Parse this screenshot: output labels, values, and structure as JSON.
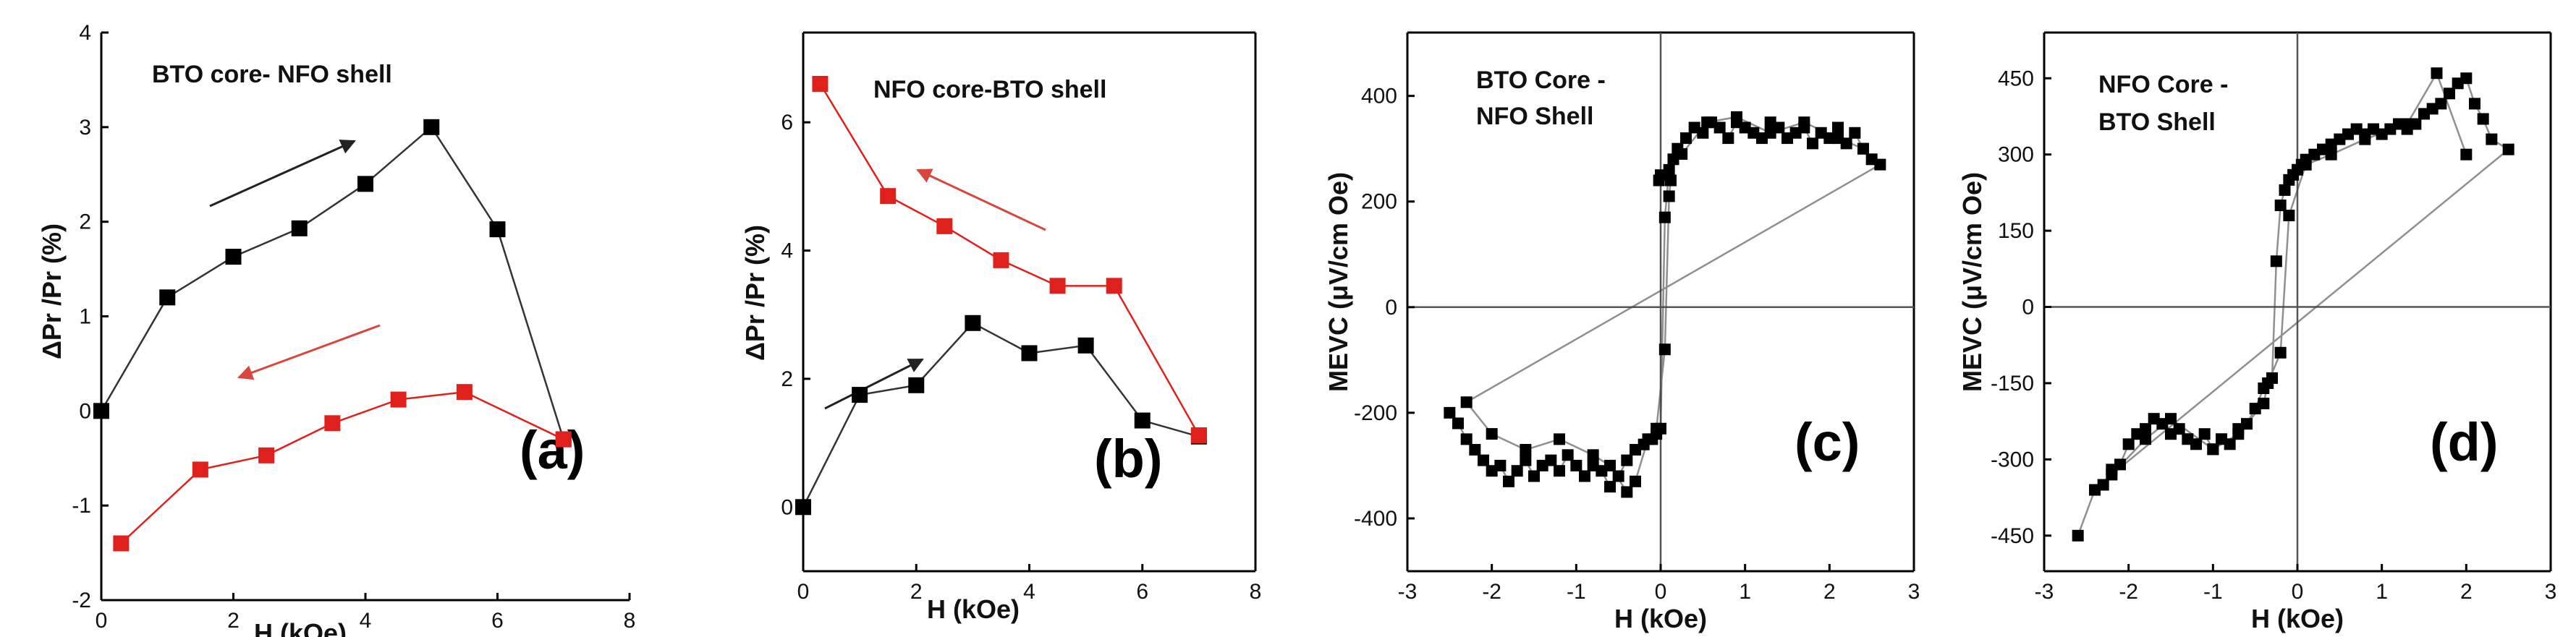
{
  "chart_data": [
    {
      "type": "line",
      "panel_label": "(a)",
      "title": "BTO core- NFO shell",
      "xlabel": "H (kOe)",
      "ylabel": "ΔPr /Pr (%)",
      "xlim": [
        0,
        8
      ],
      "ylim": [
        -2,
        4
      ],
      "xticks": [
        0,
        2,
        4,
        6,
        8
      ],
      "yticks": [
        -2,
        -1,
        0,
        1,
        2,
        3,
        4
      ],
      "series": [
        {
          "name": "increasing field",
          "color": "#000000",
          "x": [
            0,
            1,
            2,
            3,
            4,
            5,
            6,
            7
          ],
          "y": [
            0,
            1.2,
            1.63,
            1.93,
            2.4,
            3.0,
            1.92,
            -0.3
          ]
        },
        {
          "name": "decreasing field",
          "color": "#e0201c",
          "x": [
            0.3,
            1.5,
            2.5,
            3.5,
            4.5,
            5.5,
            7
          ],
          "y": [
            -1.4,
            -0.62,
            -0.47,
            -0.13,
            0.12,
            0.2,
            -0.3
          ]
        }
      ]
    },
    {
      "type": "line",
      "panel_label": "(b)",
      "title": "NFO core-BTO shell",
      "xlabel": "H (kOe)",
      "ylabel": "ΔPr /Pr (%)",
      "xlim": [
        0,
        8
      ],
      "ylim": [
        -1,
        7.4
      ],
      "xticks": [
        0,
        2,
        4,
        6,
        8
      ],
      "yticks": [
        0,
        2,
        4,
        6
      ],
      "series": [
        {
          "name": "increasing field",
          "color": "#000000",
          "x": [
            0,
            1,
            2,
            3,
            4,
            5,
            6,
            7
          ],
          "y": [
            0,
            1.75,
            1.9,
            2.87,
            2.4,
            2.52,
            1.35,
            1.1
          ]
        },
        {
          "name": "decreasing field",
          "color": "#e0201c",
          "x": [
            0.3,
            1.5,
            2.5,
            3.5,
            4.5,
            5.5,
            7
          ],
          "y": [
            6.6,
            4.85,
            4.38,
            3.85,
            3.45,
            3.45,
            1.12
          ]
        }
      ]
    },
    {
      "type": "scatter",
      "panel_label": "(c)",
      "title": "BTO Core -\nNFO Shell",
      "xlabel": "H (kOe)",
      "ylabel": "MEVC (μV/cm Oe)",
      "xlim": [
        -3,
        3
      ],
      "ylim": [
        -500,
        520
      ],
      "xticks": [
        -3,
        -2,
        -1,
        0,
        1,
        2,
        3
      ],
      "yticks": [
        -400,
        -200,
        0,
        200,
        400
      ],
      "series": [
        {
          "name": "MEVC",
          "color": "#000000",
          "x": [
            -2.5,
            -2.4,
            -2.3,
            -2.2,
            -2.1,
            -2.0,
            -1.9,
            -1.8,
            -1.7,
            -1.6,
            -1.5,
            -1.4,
            -1.3,
            -1.2,
            -1.1,
            -1.0,
            -0.9,
            -0.8,
            -0.7,
            -0.6,
            -0.5,
            -0.4,
            -0.3,
            -0.2,
            -0.1,
            -0.05,
            0.0,
            0.05,
            0.1,
            0.15,
            0.2,
            0.3,
            0.4,
            0.5,
            0.6,
            0.7,
            0.8,
            0.9,
            1.0,
            1.1,
            1.2,
            1.3,
            1.4,
            1.5,
            1.6,
            1.7,
            1.8,
            1.9,
            2.0,
            2.1,
            2.2,
            2.3,
            2.4,
            2.5,
            2.6,
            -2.3,
            -2.0,
            -1.6,
            -1.2,
            -0.8,
            -0.6,
            -0.4,
            -0.3,
            -0.15,
            -0.05,
            0.05,
            0.1,
            0.12,
            0.0,
            -0.02,
            0.25,
            0.55,
            0.9,
            1.3,
            1.7,
            2.1,
            2.4
          ],
          "y": [
            -200,
            -220,
            -250,
            -270,
            -290,
            -310,
            -300,
            -330,
            -310,
            -290,
            -320,
            -300,
            -290,
            -310,
            -280,
            -300,
            -320,
            -300,
            -310,
            -340,
            -320,
            -290,
            -270,
            -260,
            -250,
            -240,
            -230,
            170,
            260,
            280,
            300,
            320,
            340,
            330,
            350,
            340,
            320,
            350,
            340,
            330,
            320,
            350,
            340,
            320,
            330,
            340,
            310,
            330,
            320,
            340,
            310,
            330,
            300,
            280,
            270,
            -180,
            -240,
            -270,
            -250,
            -280,
            -300,
            -350,
            -330,
            -250,
            -230,
            -80,
            210,
            240,
            250,
            240,
            290,
            350,
            360,
            330,
            350,
            320,
            300
          ]
        }
      ]
    },
    {
      "type": "scatter",
      "panel_label": "(d)",
      "title": "NFO Core -\nBTO Shell",
      "xlabel": "H (kOe)",
      "ylabel": "MEVC (μV/cm Oe)",
      "xlim": [
        -3,
        3
      ],
      "ylim": [
        -520,
        540
      ],
      "xticks": [
        -3,
        -2,
        -1,
        0,
        1,
        2,
        3
      ],
      "yticks": [
        -450,
        -300,
        -150,
        0,
        150,
        300,
        450
      ],
      "series": [
        {
          "name": "MEVC",
          "color": "#000000",
          "x": [
            -2.6,
            -2.4,
            -2.3,
            -2.2,
            -2.1,
            -2.0,
            -1.9,
            -1.8,
            -1.7,
            -1.6,
            -1.5,
            -1.4,
            -1.3,
            -1.2,
            -1.1,
            -1.0,
            -0.9,
            -0.8,
            -0.7,
            -0.6,
            -0.5,
            -0.4,
            -0.3,
            -0.25,
            -0.2,
            -0.15,
            -0.1,
            -0.05,
            0.0,
            0.05,
            0.1,
            0.2,
            0.3,
            0.4,
            0.5,
            0.6,
            0.7,
            0.8,
            0.9,
            1.0,
            1.1,
            1.2,
            1.3,
            1.4,
            1.5,
            1.6,
            1.7,
            1.8,
            1.9,
            2.0,
            2.1,
            2.2,
            2.3,
            2.5,
            -2.2,
            -1.8,
            -1.5,
            -1.0,
            -0.7,
            -0.4,
            -0.35,
            -0.2,
            -0.1,
            0.1,
            0.4,
            0.8,
            1.3,
            1.65,
            2.0
          ],
          "y": [
            -450,
            -360,
            -350,
            -320,
            -310,
            -270,
            -250,
            -240,
            -220,
            -230,
            -250,
            -240,
            -260,
            -270,
            -250,
            -280,
            -260,
            -270,
            -240,
            -230,
            -200,
            -160,
            -140,
            90,
            200,
            230,
            250,
            260,
            270,
            280,
            290,
            300,
            310,
            320,
            330,
            340,
            350,
            340,
            350,
            340,
            350,
            360,
            350,
            360,
            380,
            390,
            400,
            420,
            440,
            450,
            400,
            370,
            330,
            310,
            -330,
            -260,
            -220,
            -280,
            -250,
            -190,
            -150,
            -90,
            180,
            280,
            300,
            330,
            360,
            460,
            300
          ]
        }
      ]
    }
  ]
}
